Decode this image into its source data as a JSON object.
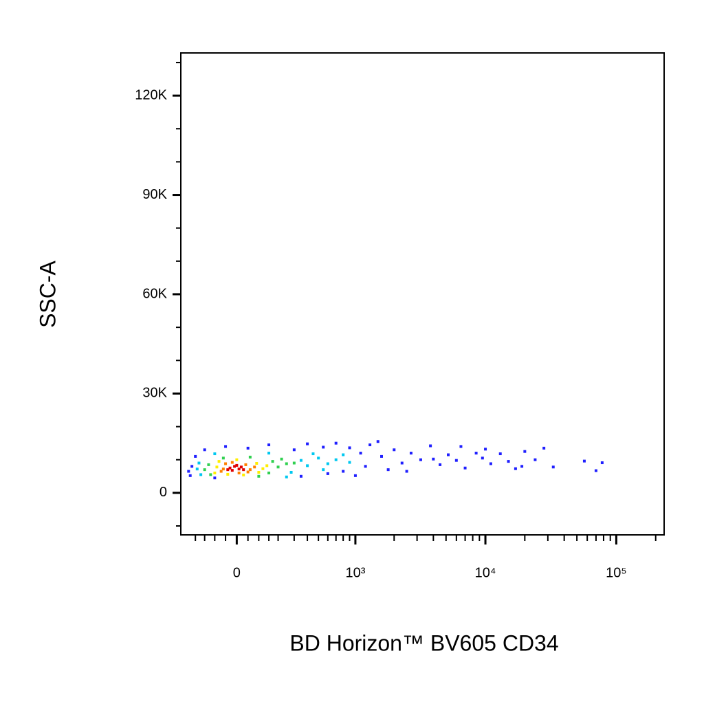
{
  "chart_data": {
    "type": "scatter",
    "xlabel": "BD Horizon™ BV605 CD34",
    "ylabel": "SSC-A",
    "xscale": "biexponential",
    "xlim": [
      -290,
      232000
    ],
    "ylim": [
      -12700,
      132900
    ],
    "xticks": [
      0,
      {
        "value": 1000,
        "label": "10³"
      },
      {
        "value": 10000,
        "label": "10⁴"
      },
      {
        "value": 100000,
        "label": "10⁵"
      }
    ],
    "xminorticks": [
      -200,
      -150,
      -100,
      -50,
      50,
      100,
      150,
      200,
      300,
      400,
      500,
      600,
      700,
      800,
      900,
      2000,
      3000,
      4000,
      5000,
      6000,
      7000,
      8000,
      9000,
      20000,
      30000,
      40000,
      50000,
      60000,
      70000,
      80000,
      90000,
      200000
    ],
    "yticks": [
      0,
      {
        "value": 30000,
        "label": "30K"
      },
      {
        "value": 60000,
        "label": "60K"
      },
      {
        "value": 90000,
        "label": "90K"
      },
      {
        "value": 120000,
        "label": "120K"
      }
    ],
    "yminorticks": [
      -10000,
      10000,
      20000,
      40000,
      50000,
      70000,
      80000,
      100000,
      110000,
      130000
    ],
    "series": [
      {
        "color": "#1f1fff",
        "x": [
          -220,
          -240,
          -200,
          -150,
          -50,
          50,
          150,
          300,
          400,
          550,
          700,
          900,
          1100,
          1300,
          1600,
          2000,
          2300,
          1800,
          2700,
          3200,
          3800,
          4500,
          5200,
          6000,
          7000,
          8500,
          9500,
          11000,
          13000,
          15000,
          17000,
          20000,
          24000,
          28000,
          33000,
          57000,
          70000,
          78000,
          1000,
          600,
          -230,
          -100,
          1200,
          2500,
          350,
          800,
          1500,
          4000,
          10000,
          6500,
          19000
        ],
        "values": [
          8000,
          6500,
          11000,
          13000,
          14000,
          13500,
          14500,
          13000,
          14800,
          13800,
          15000,
          13600,
          12000,
          14500,
          11000,
          13000,
          9000,
          7000,
          12000,
          10000,
          14200,
          8500,
          11500,
          9800,
          7500,
          12000,
          10500,
          8800,
          11800,
          9500,
          7300,
          12500,
          10000,
          13500,
          7800,
          9600,
          6700,
          9100,
          5200,
          5800,
          5200,
          4500,
          8000,
          6500,
          5000,
          6500,
          15500,
          10200,
          13200,
          14000,
          8000
        ]
      },
      {
        "color": "#00c8f0",
        "x": [
          -180,
          350,
          400,
          -170,
          280,
          500,
          600,
          450,
          150,
          -100,
          700,
          -190,
          250,
          550,
          800,
          900
        ],
        "values": [
          9000,
          9800,
          8200,
          5500,
          6200,
          10500,
          8800,
          11800,
          12000,
          11800,
          10000,
          7200,
          4800,
          7000,
          11500,
          9200
        ]
      },
      {
        "color": "#30d050",
        "x": [
          -130,
          170,
          200,
          -120,
          150,
          250,
          60,
          -60,
          220,
          300,
          -150,
          100
        ],
        "values": [
          8500,
          9500,
          7800,
          5500,
          6000,
          8800,
          10800,
          10500,
          10200,
          9000,
          7000,
          5000
        ]
      },
      {
        "color": "#ffee00",
        "x": [
          -90,
          90,
          120,
          -80,
          -100,
          100,
          140,
          0,
          30,
          -40
        ],
        "values": [
          7800,
          8900,
          7300,
          9500,
          6000,
          6200,
          8200,
          10000,
          5400,
          5600
        ]
      },
      {
        "color": "#ff8000",
        "x": [
          -60,
          40,
          60,
          -50,
          -70,
          50,
          80,
          -20,
          10
        ],
        "values": [
          7200,
          8500,
          7000,
          8800,
          6500,
          6300,
          7800,
          9200,
          6000
        ]
      },
      {
        "color": "#e00000",
        "x": [
          -30,
          -10,
          10,
          -20,
          20,
          0,
          -40,
          30
        ],
        "values": [
          7500,
          8000,
          7200,
          6800,
          7800,
          8300,
          7000,
          7000
        ]
      }
    ]
  }
}
